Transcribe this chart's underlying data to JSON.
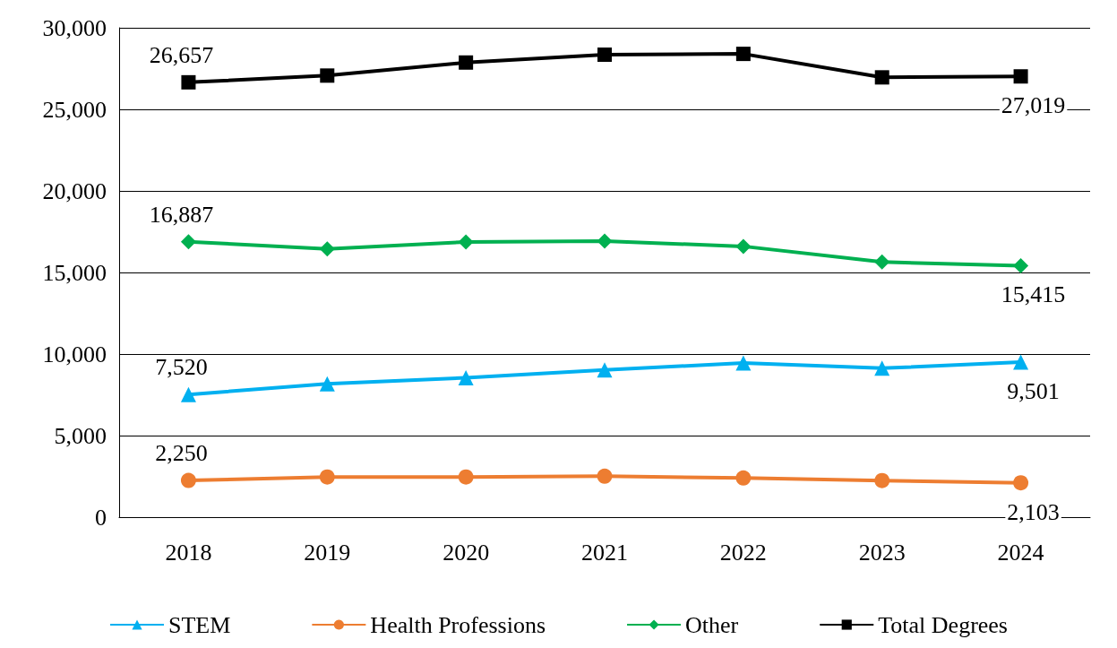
{
  "chart_data": {
    "type": "line",
    "categories": [
      "2018",
      "2019",
      "2020",
      "2021",
      "2022",
      "2023",
      "2024"
    ],
    "series": [
      {
        "name": "STEM",
        "color": "#00b0f0",
        "marker": "triangle",
        "values": [
          7520,
          8170,
          8540,
          9020,
          9450,
          9130,
          9501
        ],
        "value_labels": [
          "7,520",
          null,
          null,
          null,
          null,
          null,
          "9,501"
        ]
      },
      {
        "name": "Health Professions",
        "color": "#ed7d31",
        "marker": "circle",
        "values": [
          2250,
          2460,
          2460,
          2510,
          2400,
          2240,
          2103
        ],
        "value_labels": [
          "2,250",
          null,
          null,
          null,
          null,
          null,
          "2,103"
        ]
      },
      {
        "name": "Other",
        "color": "#00b050",
        "marker": "diamond",
        "values": [
          16887,
          16440,
          16870,
          16920,
          16600,
          15640,
          15415
        ],
        "value_labels": [
          "16,887",
          null,
          null,
          null,
          null,
          null,
          "15,415"
        ]
      },
      {
        "name": "Total Degrees",
        "color": "#000000",
        "marker": "square",
        "values": [
          26657,
          27070,
          27870,
          28350,
          28400,
          26960,
          27019
        ],
        "value_labels": [
          "26,657",
          null,
          null,
          null,
          null,
          null,
          "27,019"
        ]
      }
    ],
    "ylim": [
      0,
      30000
    ],
    "yticks": [
      {
        "value": 0,
        "label": "0"
      },
      {
        "value": 5000,
        "label": "5,000"
      },
      {
        "value": 10000,
        "label": "10,000"
      },
      {
        "value": 15000,
        "label": "15,000"
      },
      {
        "value": 20000,
        "label": "20,000"
      },
      {
        "value": 25000,
        "label": "25,000"
      },
      {
        "value": 30000,
        "label": "30,000"
      }
    ],
    "grid": "y",
    "legend": "bottom"
  }
}
